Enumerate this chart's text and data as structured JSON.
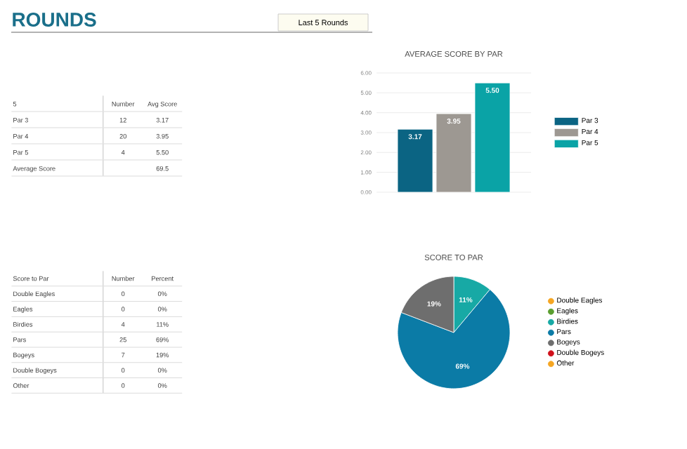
{
  "chart_data": [
    {
      "type": "other",
      "title": "ROUNDS",
      "annotations": [
        "Last 5 Rounds"
      ]
    },
    {
      "type": "other",
      "title": "5",
      "data_labels": true,
      "categories": [
        "Par 3",
        "Par 4",
        "Par 5",
        "Average Score"
      ],
      "series": [
        {
          "name": "Number",
          "values": [
            12,
            20,
            4,
            null
          ]
        },
        {
          "name": "Avg Score",
          "values": [
            3.17,
            3.95,
            5.5,
            69.5
          ],
          "value_labels": [
            "3.17",
            "3.95",
            "5.50",
            "69.5"
          ]
        }
      ]
    },
    {
      "type": "bar",
      "title": "AVERAGE SCORE BY PAR",
      "categories": [
        null,
        null,
        null
      ],
      "series": [
        {
          "name": "Par 3",
          "color": "#0b6483",
          "values": [
            3.17,
            null,
            null
          ],
          "value_labels": [
            "3.17",
            null,
            null
          ]
        },
        {
          "name": "Par 4",
          "color": "#9d9892",
          "values": [
            null,
            3.95,
            null
          ],
          "value_labels": [
            null,
            "3.95",
            null
          ]
        },
        {
          "name": "Par 5",
          "color": "#0aa3a6",
          "values": [
            null,
            null,
            5.5
          ],
          "value_labels": [
            null,
            null,
            "5.50"
          ]
        }
      ],
      "ylim": [
        0,
        6
      ],
      "yticks": [
        {
          "value": 0,
          "label": "0.00"
        },
        {
          "value": 1,
          "label": "1.00"
        },
        {
          "value": 2,
          "label": "2.00"
        },
        {
          "value": 3,
          "label": "3.00"
        },
        {
          "value": 4,
          "label": "4.00"
        },
        {
          "value": 5,
          "label": "5.00"
        },
        {
          "value": 6,
          "label": "6.00"
        }
      ],
      "grid": "y",
      "legend": "right"
    },
    {
      "type": "other",
      "title": "Score to Par",
      "data_labels": true,
      "categories": [
        "Double Eagles",
        "Eagles",
        "Birdies",
        "Pars",
        "Bogeys",
        "Double Bogeys",
        "Other"
      ],
      "series": [
        {
          "name": "Number",
          "values": [
            0,
            0,
            4,
            25,
            7,
            0,
            0
          ]
        },
        {
          "name": "Percent",
          "values": [
            0,
            0,
            11,
            69,
            19,
            0,
            0
          ],
          "value_labels": [
            "0%",
            "0%",
            "11%",
            "69%",
            "19%",
            "0%",
            "0%"
          ]
        }
      ]
    },
    {
      "type": "pie",
      "title": "SCORE TO PAR",
      "categories": [
        "Double Eagles",
        "Eagles",
        "Birdies",
        "Pars",
        "Bogeys",
        "Double Bogeys",
        "Other"
      ],
      "values": [
        0,
        0,
        11,
        69,
        19,
        0,
        0
      ],
      "value_labels": [
        null,
        null,
        "11%",
        "69%",
        "19%",
        null,
        null
      ],
      "colors": [
        "#f5a623",
        "#5a9e2f",
        "#17a9a5",
        "#0b7ba6",
        "#6e6e6e",
        "#d0101b",
        "#f5a623"
      ],
      "legend": "right"
    }
  ]
}
